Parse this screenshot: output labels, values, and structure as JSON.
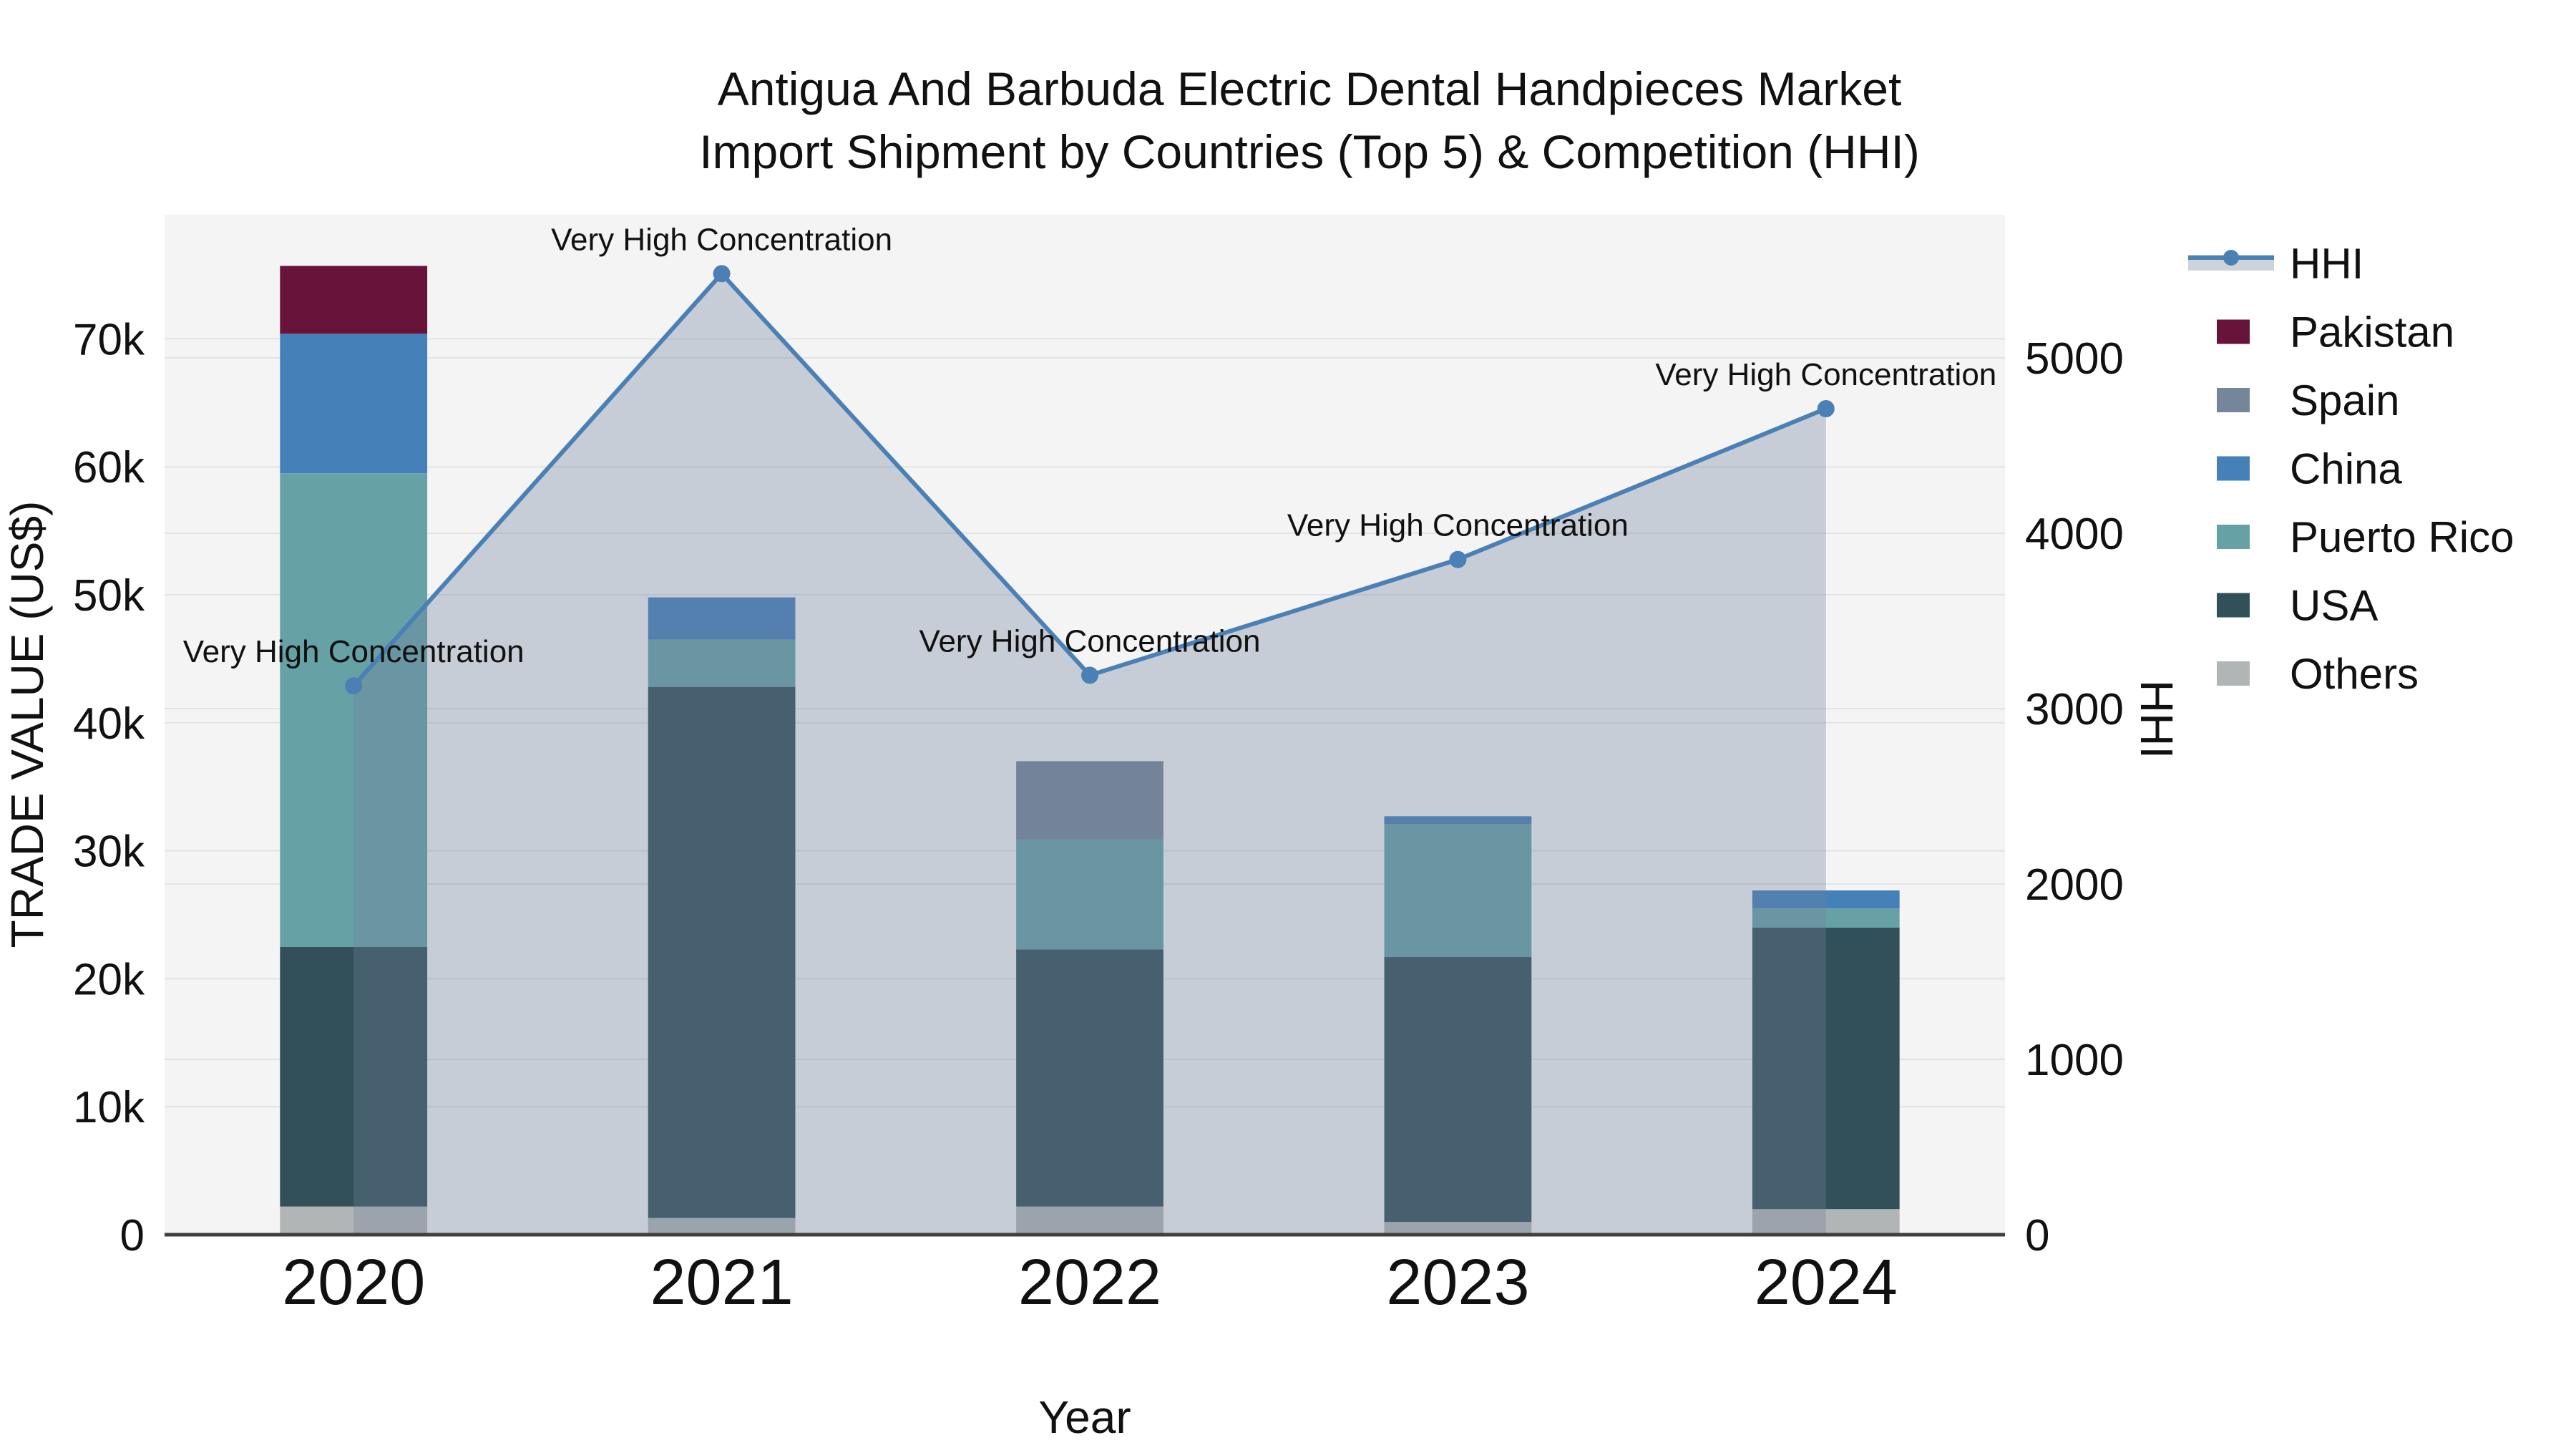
{
  "title": {
    "line1": "Antigua And Barbuda Electric Dental Handpieces Market",
    "line2": "Import Shipment by Countries (Top 5) & Competition (HHI)"
  },
  "axes": {
    "x": {
      "title": "Year",
      "categories": [
        "2020",
        "2021",
        "2022",
        "2023",
        "2024"
      ]
    },
    "y_left": {
      "title": "TRADE VALUE (US$)",
      "tick_labels": [
        "0",
        "10k",
        "20k",
        "30k",
        "40k",
        "50k",
        "60k",
        "70k"
      ],
      "tick_values": [
        0,
        10000,
        20000,
        30000,
        40000,
        50000,
        60000,
        70000
      ]
    },
    "y_right": {
      "title": "HHI",
      "tick_labels": [
        "0",
        "1000",
        "2000",
        "3000",
        "4000",
        "5000"
      ],
      "tick_values": [
        0,
        1000,
        2000,
        3000,
        4000,
        5000
      ]
    }
  },
  "legend": [
    {
      "label": "HHI",
      "type": "line",
      "color": "#4a80b5"
    },
    {
      "label": "Pakistan",
      "type": "box",
      "color": "#681339"
    },
    {
      "label": "Spain",
      "type": "box",
      "color": "#75869a"
    },
    {
      "label": "China",
      "type": "box",
      "color": "#4580b8"
    },
    {
      "label": "Puerto Rico",
      "type": "box",
      "color": "#66a1a6"
    },
    {
      "label": "USA",
      "type": "box",
      "color": "#315059"
    },
    {
      "label": "Others",
      "type": "box",
      "color": "#b2b5b5"
    }
  ],
  "annotations": [
    {
      "year": "2020",
      "text": "Very High Concentration"
    },
    {
      "year": "2021",
      "text": "Very High Concentration"
    },
    {
      "year": "2022",
      "text": "Very High Concentration"
    },
    {
      "year": "2023",
      "text": "Very High Concentration"
    },
    {
      "year": "2024",
      "text": "Very High Concentration"
    }
  ],
  "colors": {
    "plot_background": "#f4f4f4",
    "gridline": "#e3e3e3",
    "axis_line": "#3f3f3f",
    "text": "#111111",
    "hhi_line": "#4a80b5",
    "hhi_area_fill": "#70819a",
    "legend_band": "#cdd3da"
  },
  "chart_data": {
    "type": "bar",
    "subtype": "stacked-bar-with-line",
    "categories": [
      "2020",
      "2021",
      "2022",
      "2023",
      "2024"
    ],
    "xlabel": "Year",
    "ylabel_left": "TRADE VALUE (US$)",
    "ylabel_right": "HHI",
    "ylim_left": [
      0,
      79700
    ],
    "ylim_right": [
      0,
      5816
    ],
    "grid": true,
    "legend_position": "right",
    "bar_series": [
      {
        "name": "Others",
        "color": "#b2b5b5",
        "values": [
          2200,
          1300,
          2200,
          1000,
          2000
        ]
      },
      {
        "name": "USA",
        "color": "#315059",
        "values": [
          20300,
          41500,
          20100,
          20700,
          22000
        ]
      },
      {
        "name": "Puerto Rico",
        "color": "#66a1a6",
        "values": [
          37000,
          3700,
          8600,
          10400,
          1500
        ]
      },
      {
        "name": "China",
        "color": "#4580b8",
        "values": [
          10900,
          3300,
          0,
          600,
          1400
        ]
      },
      {
        "name": "Spain",
        "color": "#75869a",
        "values": [
          0,
          0,
          6100,
          0,
          0
        ]
      },
      {
        "name": "Pakistan",
        "color": "#681339",
        "values": [
          5300,
          0,
          0,
          0,
          0
        ]
      }
    ],
    "line_series": {
      "name": "HHI",
      "color": "#4a80b5",
      "fill_color": "#70819a",
      "fill_opacity": 0.34,
      "values": [
        3130,
        5480,
        3190,
        3850,
        4710
      ]
    },
    "bar_totals": [
      75700,
      49800,
      37000,
      32700,
      26900
    ]
  }
}
